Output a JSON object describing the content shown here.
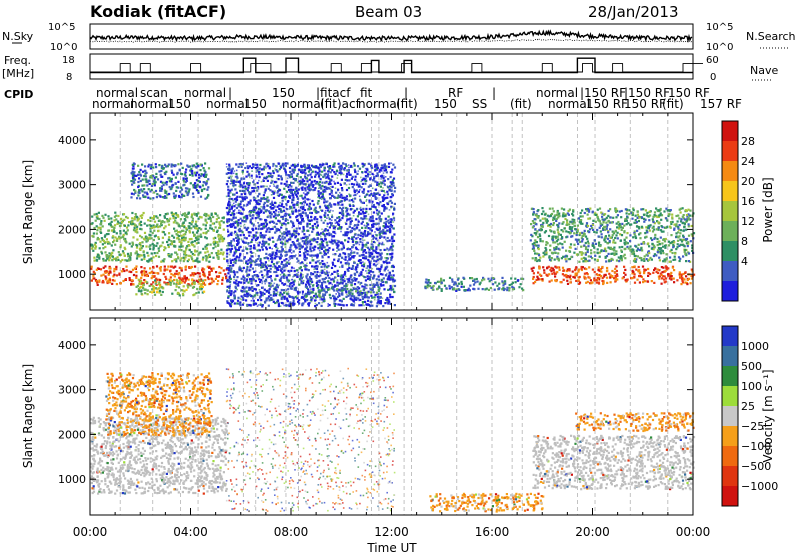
{
  "header": {
    "title": "Kodiak (fitACF)",
    "beam": "Beam 03",
    "date": "28/Jan/2013"
  },
  "chart_data": [
    {
      "type": "line",
      "name": "noise-strip",
      "left_label": "N.Sky",
      "right_label": "N.Search",
      "left_ticks": [
        "10^5",
        "10^0"
      ],
      "right_ticks": [
        "10^5",
        "10^0"
      ],
      "note_series": [
        {
          "name": "N.Sky",
          "x": [
            0,
            2,
            4,
            6,
            8,
            10,
            12,
            14,
            16,
            18,
            19,
            20,
            22,
            24
          ],
          "y": [
            2.2,
            2.3,
            2.1,
            2.4,
            2.3,
            2.2,
            2.1,
            2.2,
            2.4,
            3.3,
            3.0,
            2.6,
            2.2,
            2.1
          ]
        },
        {
          "name": "N.Search",
          "x": [
            0,
            4,
            8,
            12,
            16,
            18,
            20,
            24
          ],
          "y": [
            1.4,
            1.4,
            1.5,
            1.4,
            1.5,
            1.8,
            1.6,
            1.4
          ]
        }
      ]
    },
    {
      "type": "line",
      "name": "freq-nave-strip",
      "left_label": "Freq.",
      "left_unit": "[MHz]",
      "right_label": "Nave",
      "left_ticks": [
        "18",
        "8"
      ],
      "right_ticks": [
        "60",
        "0"
      ],
      "freq_mhz": [
        {
          "x0": 0,
          "x1": 6.1,
          "y": 10.5
        },
        {
          "x0": 6.1,
          "x1": 6.6,
          "y": 17
        },
        {
          "x0": 6.6,
          "x1": 7.8,
          "y": 10.5
        },
        {
          "x0": 7.8,
          "x1": 8.3,
          "y": 17
        },
        {
          "x0": 8.3,
          "x1": 11.2,
          "y": 10.5
        },
        {
          "x0": 11.2,
          "x1": 11.5,
          "y": 16
        },
        {
          "x0": 11.5,
          "x1": 12.5,
          "y": 10.5
        },
        {
          "x0": 12.5,
          "x1": 12.8,
          "y": 16
        },
        {
          "x0": 12.8,
          "x1": 19.4,
          "y": 10.5
        },
        {
          "x0": 19.4,
          "x1": 20.1,
          "y": 17
        },
        {
          "x0": 20.1,
          "x1": 24,
          "y": 10.5
        }
      ]
    },
    {
      "type": "table",
      "name": "cpid-strip",
      "label": "CPID",
      "upper_texts": [
        "normal",
        "scan",
        "normal",
        "|",
        "150",
        "|fitacf",
        "fit",
        "|",
        "RF",
        "|",
        "normal",
        "|150 RF",
        "|150 RF",
        "150 RF"
      ],
      "lower_texts": [
        "normal",
        "normal",
        "150",
        "normal",
        "150",
        "normal",
        "(fit)acf",
        "normal",
        "(fit)",
        "150",
        "SS",
        "(fit)",
        "normal",
        "150 RF",
        "150 RF",
        "(fit)",
        "157 RF"
      ]
    },
    {
      "type": "heatmap",
      "name": "power",
      "ylabel": "Slant Range [km]",
      "yticks": [
        1000,
        2000,
        3000,
        4000
      ],
      "ylim": [
        200,
        4600
      ],
      "xlim": [
        0,
        24
      ],
      "colorbar": {
        "label": "Power [dB]",
        "ticks": [
          "4",
          "8",
          "12",
          "16",
          "20",
          "24",
          "28"
        ]
      },
      "features": [
        {
          "x0": 0,
          "x1": 5.4,
          "r0": 780,
          "r1": 1200,
          "level": 26
        },
        {
          "x0": 0,
          "x1": 5.3,
          "r0": 1300,
          "r1": 2400,
          "level": 12
        },
        {
          "x0": 1.6,
          "x1": 4.7,
          "r0": 2700,
          "r1": 3500,
          "level": 6
        },
        {
          "x0": 1.8,
          "x1": 4.5,
          "r0": 550,
          "r1": 900,
          "level": 14
        },
        {
          "x0": 5.4,
          "x1": 12.1,
          "r0": 300,
          "r1": 3500,
          "level": 3
        },
        {
          "x0": 8.5,
          "x1": 11.5,
          "r0": 500,
          "r1": 700,
          "level": 8
        },
        {
          "x0": 13.3,
          "x1": 17.2,
          "r0": 650,
          "r1": 950,
          "level": 8
        },
        {
          "x0": 17.5,
          "x1": 24,
          "r0": 800,
          "r1": 1200,
          "level": 26
        },
        {
          "x0": 17.5,
          "x1": 24,
          "r0": 1300,
          "r1": 2500,
          "level": 10
        }
      ]
    },
    {
      "type": "heatmap",
      "name": "velocity",
      "ylabel": "Slant Range [km]",
      "yticks": [
        1000,
        2000,
        3000,
        4000
      ],
      "ylim": [
        200,
        4600
      ],
      "xlim": [
        0,
        24
      ],
      "xticks": [
        "00:00",
        "04:00",
        "08:00",
        "12:00",
        "16:00",
        "20:00",
        "00:00"
      ],
      "xlabel": "Time UT",
      "colorbar": {
        "label": "Velocity [m s⁻¹]",
        "ticks": [
          "1000",
          "500",
          "100",
          "25",
          "−25",
          "−100",
          "−500",
          "−1000"
        ]
      },
      "features": [
        {
          "x0": 0,
          "x1": 5.4,
          "r0": 700,
          "r1": 2400,
          "v": "ground-scatter"
        },
        {
          "x0": 0.6,
          "x1": 4.8,
          "r0": 2000,
          "r1": 3400,
          "v": -200
        },
        {
          "x0": 17.6,
          "x1": 24,
          "r0": 800,
          "r1": 2000,
          "v": "ground-scatter"
        },
        {
          "x0": 19.3,
          "x1": 24,
          "r0": 2100,
          "r1": 2500,
          "v": -200
        },
        {
          "x0": 13.5,
          "x1": 18,
          "r0": 300,
          "r1": 700,
          "v": -150
        }
      ]
    }
  ],
  "colors": {
    "power": [
      "#1E1EDC",
      "#3F5CC2",
      "#2E8F64",
      "#6DB05A",
      "#A6C53C",
      "#F7C51A",
      "#F58A12",
      "#EB3B14",
      "#D0120F"
    ],
    "velocity": [
      "#2339C8",
      "#38709E",
      "#2E8C3C",
      "#9DDD3B",
      "#C8C8C8",
      "#F59F1A",
      "#EF6A10",
      "#E03510",
      "#D0120F"
    ],
    "ground_scatter": "#BEBEBE"
  }
}
